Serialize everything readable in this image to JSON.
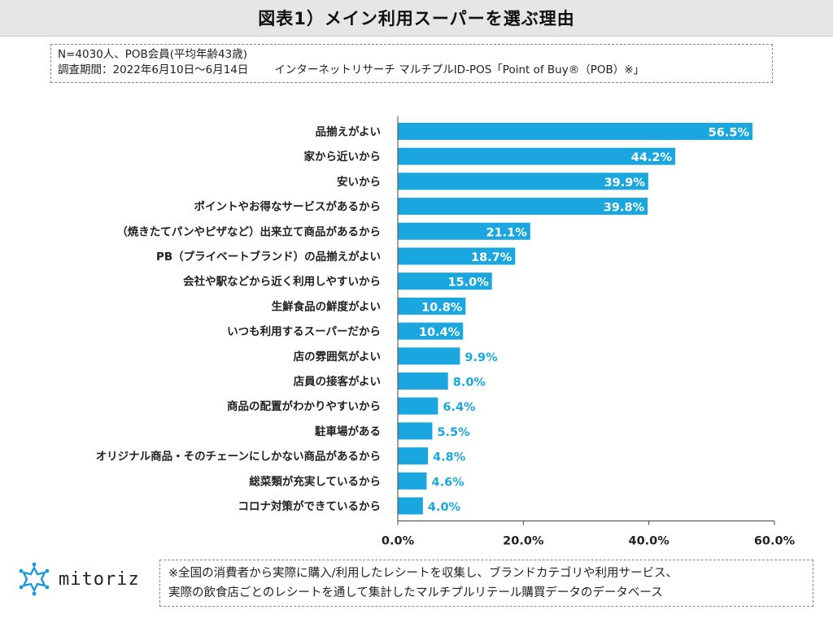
{
  "title": "図表1）メイン利用スーパーを選ぶ理由",
  "info": {
    "line1": "N=4030人、POB会員(平均年齢43歳)",
    "period": "調査期間：2022年6月10日～6月14日",
    "source": "インターネットリサーチ マルチプルID-POS「Point of Buy®（POB）※」"
  },
  "colors": {
    "bar": "#1aa7e0",
    "label_inside": "#ffffff",
    "label_outside": "#1aa7e0",
    "axis": "#444444"
  },
  "chart_data": {
    "type": "bar",
    "orientation": "horizontal",
    "categories": [
      "品揃えがよい",
      "家から近いから",
      "安いから",
      "ポイントやお得なサービスがあるから",
      "（焼きたてパンやピザなど）出来立て商品があるから",
      "PB（プライベートブランド）の品揃えがよい",
      "会社や駅などから近く利用しやすいから",
      "生鮮食品の鮮度がよい",
      "いつも利用するスーパーだから",
      "店の雰囲気がよい",
      "店員の接客がよい",
      "商品の配置がわかりやすいから",
      "駐車場がある",
      "オリジナル商品・そのチェーンにしかない商品があるから",
      "総菜類が充実しているから",
      "コロナ対策ができているから"
    ],
    "values": [
      56.5,
      44.2,
      39.9,
      39.8,
      21.1,
      18.7,
      15.0,
      10.8,
      10.4,
      9.9,
      8.0,
      6.4,
      5.5,
      4.8,
      4.6,
      4.0
    ],
    "value_labels": [
      "56.5%",
      "44.2%",
      "39.9%",
      "39.8%",
      "21.1%",
      "18.7%",
      "15.0%",
      "10.8%",
      "10.4%",
      "9.9%",
      "8.0%",
      "6.4%",
      "5.5%",
      "4.8%",
      "4.6%",
      "4.0%"
    ],
    "xlim": [
      0,
      60
    ],
    "xticks": [
      "0.0%",
      "20.0%",
      "40.0%",
      "60.0%"
    ],
    "xtick_values": [
      0,
      20,
      40,
      60
    ],
    "grid": false,
    "legend": "none"
  },
  "footer": {
    "logo_text": "mitoriz",
    "note_line1": "※全国の消費者から実際に購入/利用したレシートを収集し、ブランドカテゴリや利用サービス、",
    "note_line2": "実際の飲食店ごとのレシートを通して集計したマルチプルリテール購買データのデータベース"
  }
}
